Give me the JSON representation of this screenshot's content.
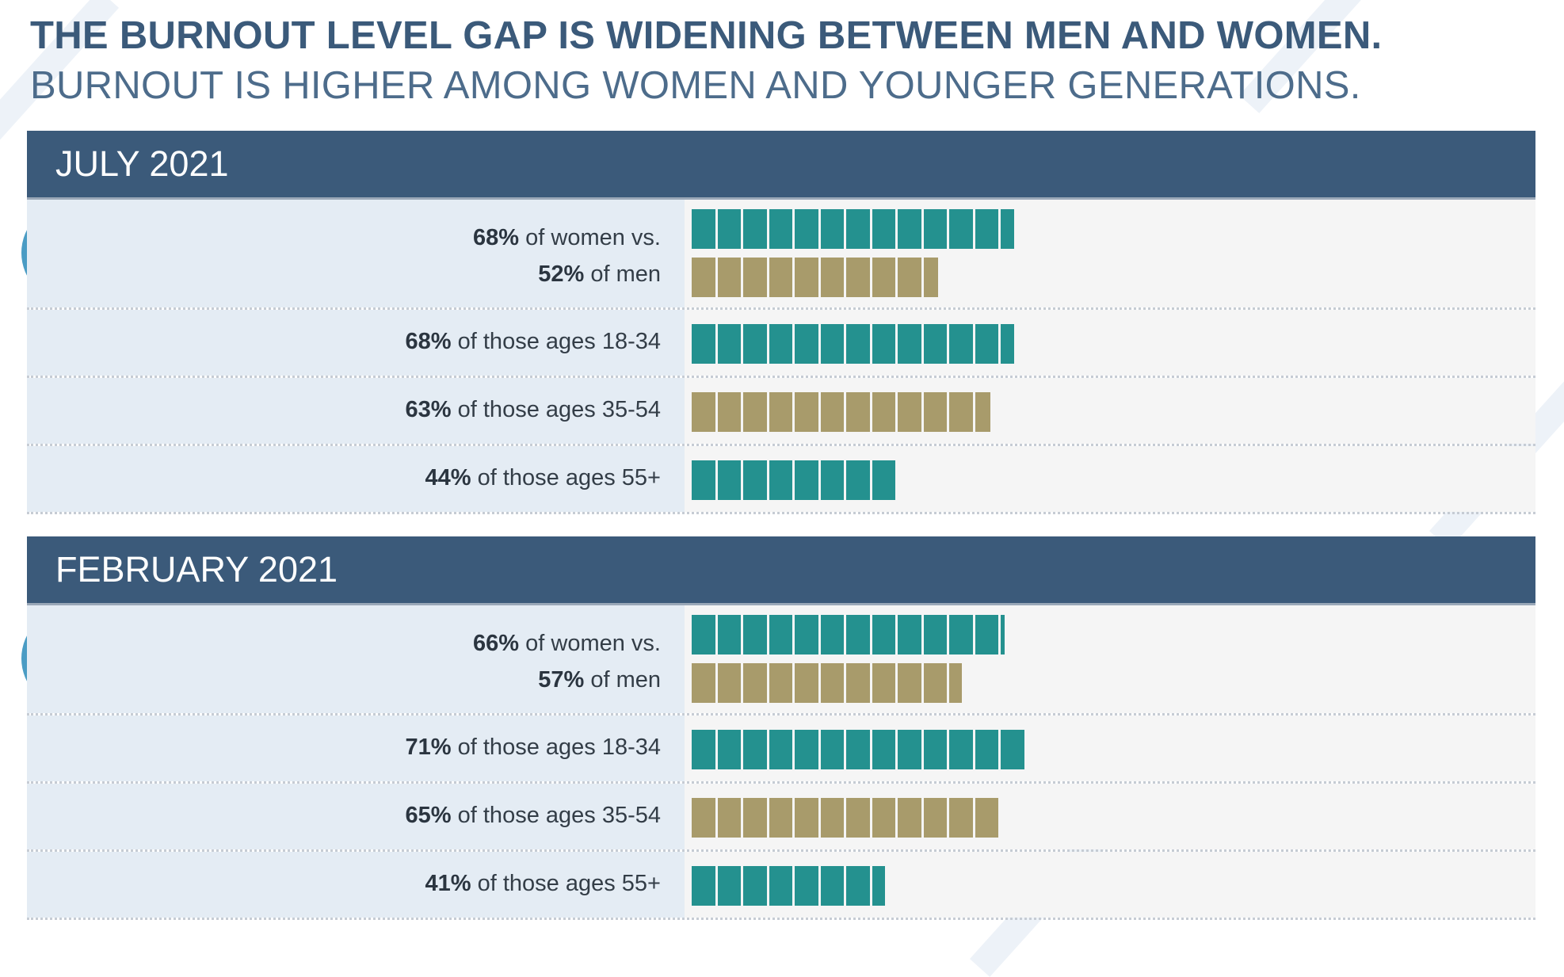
{
  "title": "THE BURNOUT LEVEL GAP IS WIDENING BETWEEN MEN AND WOMEN.",
  "subtitle": "BURNOUT IS HIGHER AMONG WOMEN AND YOUNGER GENERATIONS.",
  "colors": {
    "header": "#3b5a7a",
    "teal": "#24918f",
    "tan": "#a89b6b",
    "icon_blue": "#4a9cc4",
    "icon_navy": "#3b5a7a",
    "icon_teal": "#24918f"
  },
  "icons": [
    "gender-symbols-icon",
    "young-woman-icon",
    "middle-age-woman-icon",
    "person-silhouette-icon"
  ],
  "chart_data": [
    {
      "type": "bar",
      "title": "JULY 2021",
      "unit": "%",
      "rows": [
        {
          "value": 68,
          "pct": "68%",
          "text": " of women vs.",
          "color": "teal",
          "icon": "gender-symbols-icon"
        },
        {
          "value": 52,
          "pct": "52%",
          "text": " of men",
          "color": "tan",
          "icon": "gender-symbols-icon"
        },
        {
          "value": 68,
          "pct": "68%",
          "text": " of those ages 18-34",
          "color": "teal",
          "icon": "young-woman-icon"
        },
        {
          "value": 63,
          "pct": "63%",
          "text": " of those ages 35-54",
          "color": "tan",
          "icon": "middle-age-woman-icon"
        },
        {
          "value": 44,
          "pct": "44%",
          "text": " of those ages 55+",
          "color": "teal",
          "icon": "person-silhouette-icon"
        }
      ]
    },
    {
      "type": "bar",
      "title": "FEBRUARY 2021",
      "unit": "%",
      "rows": [
        {
          "value": 66,
          "pct": "66%",
          "text": " of women vs.",
          "color": "teal",
          "icon": "gender-symbols-icon"
        },
        {
          "value": 57,
          "pct": "57%",
          "text": " of men",
          "color": "tan",
          "icon": "gender-symbols-icon"
        },
        {
          "value": 71,
          "pct": "71%",
          "text": " of those ages 18-34",
          "color": "teal",
          "icon": "young-woman-icon"
        },
        {
          "value": 65,
          "pct": "65%",
          "text": " of those ages 35-54",
          "color": "tan",
          "icon": "middle-age-woman-icon"
        },
        {
          "value": 41,
          "pct": "41%",
          "text": " of those ages 55+",
          "color": "teal",
          "icon": "person-silhouette-icon"
        }
      ]
    }
  ]
}
